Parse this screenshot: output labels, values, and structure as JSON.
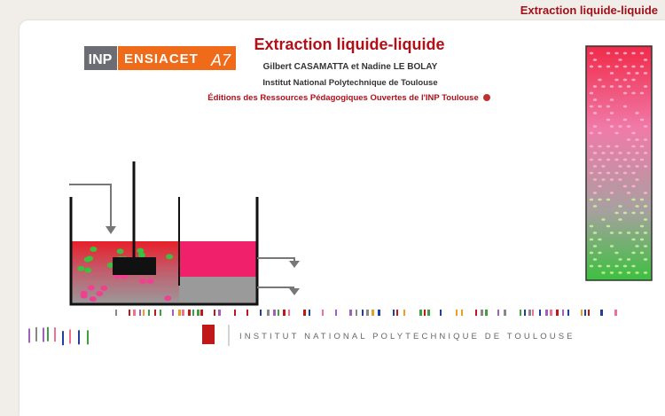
{
  "header": {
    "title": "Extraction liquide-liquide"
  },
  "logo": {
    "inp": "INP",
    "ensiacet": "ENSIACET",
    "a7": "A7"
  },
  "cover": {
    "title": "Extraction liquide-liquide",
    "authors": "Gilbert CASAMATTA et Nadine LE BOLAY",
    "institution": "Institut National Polytechnique de Toulouse",
    "publisher": "Éditions des Ressources Pédagogiques Ouvertes de l'INP Toulouse"
  },
  "footer": {
    "institution": "INSTITUT NATIONAL POLYTECHNIQUE DE TOULOUSE"
  }
}
